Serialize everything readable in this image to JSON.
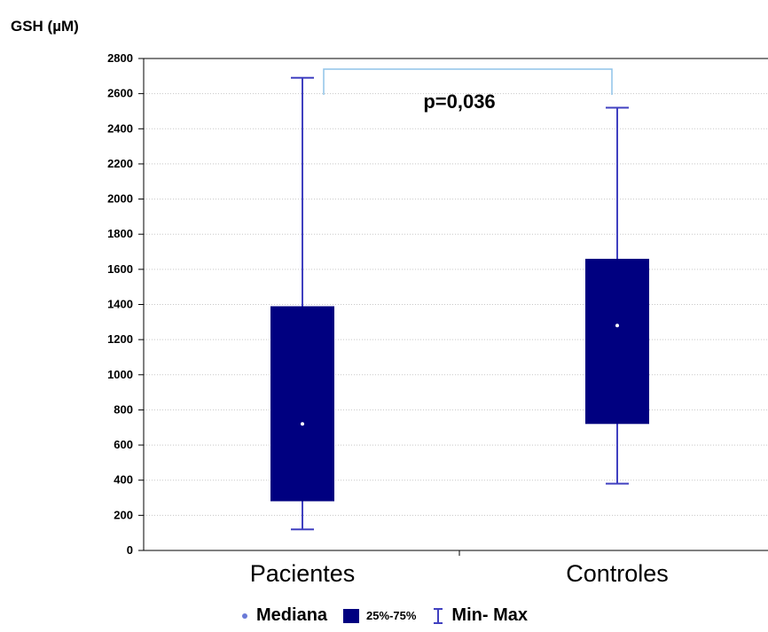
{
  "chart_data": {
    "type": "boxplot",
    "ylabel": "GSH (µM)",
    "ylim": [
      0,
      2800
    ],
    "yticks": [
      0,
      200,
      400,
      600,
      800,
      1000,
      1200,
      1400,
      1600,
      1800,
      2000,
      2200,
      2400,
      2600,
      2800
    ],
    "categories": [
      "Pacientes",
      "Controles"
    ],
    "boxes": [
      {
        "category": "Pacientes",
        "min": 120,
        "q1": 280,
        "median": 720,
        "q3": 1390,
        "max": 2690
      },
      {
        "category": "Controles",
        "min": 380,
        "q1": 720,
        "median": 1280,
        "q3": 1660,
        "max": 2520
      }
    ],
    "annotation": "p=0,036",
    "legend": [
      {
        "label": "Mediana",
        "marker": "dot"
      },
      {
        "label": "25%-75%",
        "marker": "box"
      },
      {
        "label": "Min- Max",
        "marker": "whisker"
      }
    ],
    "grid": true,
    "colors": {
      "box": "#000080",
      "whisker": "#4040c0",
      "median": "#ffffff",
      "bracket": "#8fc3e8",
      "grid": "#c8c8c8"
    }
  }
}
